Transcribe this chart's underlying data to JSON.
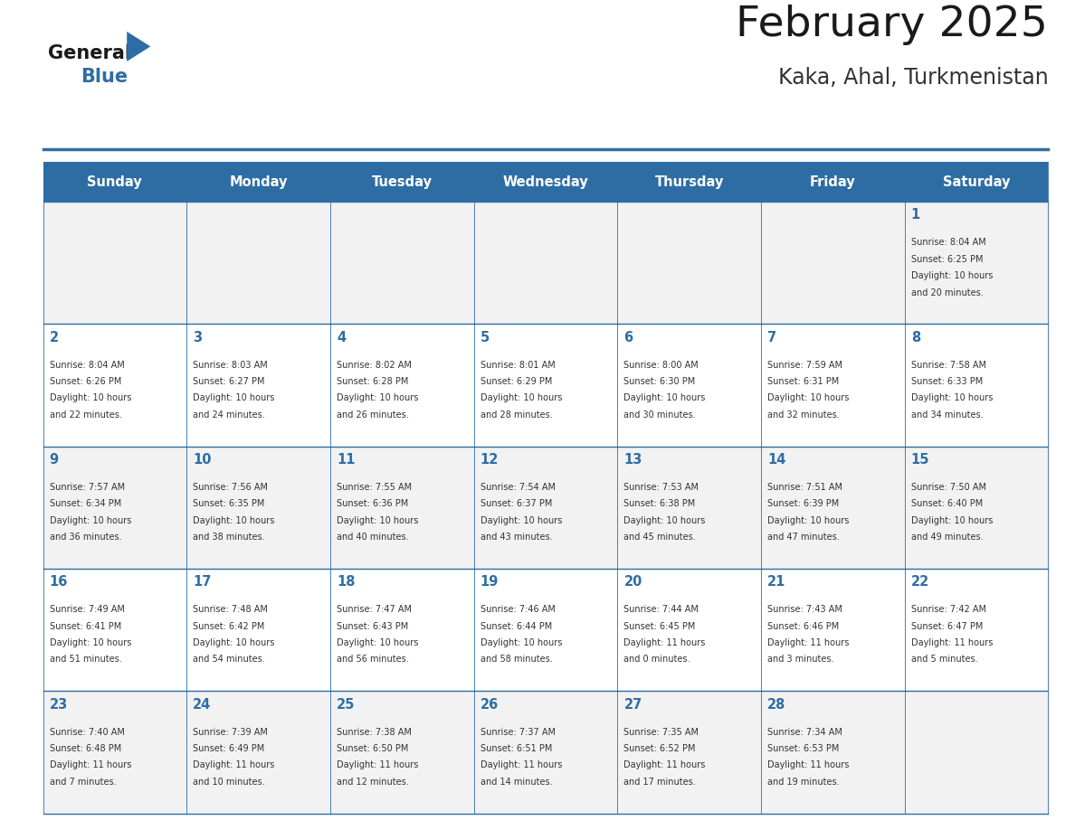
{
  "title": "February 2025",
  "subtitle": "Kaka, Ahal, Turkmenistan",
  "days_of_week": [
    "Sunday",
    "Monday",
    "Tuesday",
    "Wednesday",
    "Thursday",
    "Friday",
    "Saturday"
  ],
  "header_bg": "#2E6DA4",
  "header_text": "#FFFFFF",
  "cell_bg_odd": "#F2F2F2",
  "cell_bg_even": "#FFFFFF",
  "border_color": "#2E6DA4",
  "title_color": "#1a1a1a",
  "subtitle_color": "#333333",
  "day_num_color": "#2E6DA4",
  "cell_text_color": "#333333",
  "logo_general_color": "#1a1a1a",
  "logo_blue_color": "#2E6DA4",
  "calendar_data": [
    [
      null,
      null,
      null,
      null,
      null,
      null,
      {
        "day": 1,
        "sunrise": "8:04 AM",
        "sunset": "6:25 PM",
        "daylight": "10 hours and 20 minutes."
      }
    ],
    [
      {
        "day": 2,
        "sunrise": "8:04 AM",
        "sunset": "6:26 PM",
        "daylight": "10 hours and 22 minutes."
      },
      {
        "day": 3,
        "sunrise": "8:03 AM",
        "sunset": "6:27 PM",
        "daylight": "10 hours and 24 minutes."
      },
      {
        "day": 4,
        "sunrise": "8:02 AM",
        "sunset": "6:28 PM",
        "daylight": "10 hours and 26 minutes."
      },
      {
        "day": 5,
        "sunrise": "8:01 AM",
        "sunset": "6:29 PM",
        "daylight": "10 hours and 28 minutes."
      },
      {
        "day": 6,
        "sunrise": "8:00 AM",
        "sunset": "6:30 PM",
        "daylight": "10 hours and 30 minutes."
      },
      {
        "day": 7,
        "sunrise": "7:59 AM",
        "sunset": "6:31 PM",
        "daylight": "10 hours and 32 minutes."
      },
      {
        "day": 8,
        "sunrise": "7:58 AM",
        "sunset": "6:33 PM",
        "daylight": "10 hours and 34 minutes."
      }
    ],
    [
      {
        "day": 9,
        "sunrise": "7:57 AM",
        "sunset": "6:34 PM",
        "daylight": "10 hours and 36 minutes."
      },
      {
        "day": 10,
        "sunrise": "7:56 AM",
        "sunset": "6:35 PM",
        "daylight": "10 hours and 38 minutes."
      },
      {
        "day": 11,
        "sunrise": "7:55 AM",
        "sunset": "6:36 PM",
        "daylight": "10 hours and 40 minutes."
      },
      {
        "day": 12,
        "sunrise": "7:54 AM",
        "sunset": "6:37 PM",
        "daylight": "10 hours and 43 minutes."
      },
      {
        "day": 13,
        "sunrise": "7:53 AM",
        "sunset": "6:38 PM",
        "daylight": "10 hours and 45 minutes."
      },
      {
        "day": 14,
        "sunrise": "7:51 AM",
        "sunset": "6:39 PM",
        "daylight": "10 hours and 47 minutes."
      },
      {
        "day": 15,
        "sunrise": "7:50 AM",
        "sunset": "6:40 PM",
        "daylight": "10 hours and 49 minutes."
      }
    ],
    [
      {
        "day": 16,
        "sunrise": "7:49 AM",
        "sunset": "6:41 PM",
        "daylight": "10 hours and 51 minutes."
      },
      {
        "day": 17,
        "sunrise": "7:48 AM",
        "sunset": "6:42 PM",
        "daylight": "10 hours and 54 minutes."
      },
      {
        "day": 18,
        "sunrise": "7:47 AM",
        "sunset": "6:43 PM",
        "daylight": "10 hours and 56 minutes."
      },
      {
        "day": 19,
        "sunrise": "7:46 AM",
        "sunset": "6:44 PM",
        "daylight": "10 hours and 58 minutes."
      },
      {
        "day": 20,
        "sunrise": "7:44 AM",
        "sunset": "6:45 PM",
        "daylight": "11 hours and 0 minutes."
      },
      {
        "day": 21,
        "sunrise": "7:43 AM",
        "sunset": "6:46 PM",
        "daylight": "11 hours and 3 minutes."
      },
      {
        "day": 22,
        "sunrise": "7:42 AM",
        "sunset": "6:47 PM",
        "daylight": "11 hours and 5 minutes."
      }
    ],
    [
      {
        "day": 23,
        "sunrise": "7:40 AM",
        "sunset": "6:48 PM",
        "daylight": "11 hours and 7 minutes."
      },
      {
        "day": 24,
        "sunrise": "7:39 AM",
        "sunset": "6:49 PM",
        "daylight": "11 hours and 10 minutes."
      },
      {
        "day": 25,
        "sunrise": "7:38 AM",
        "sunset": "6:50 PM",
        "daylight": "11 hours and 12 minutes."
      },
      {
        "day": 26,
        "sunrise": "7:37 AM",
        "sunset": "6:51 PM",
        "daylight": "11 hours and 14 minutes."
      },
      {
        "day": 27,
        "sunrise": "7:35 AM",
        "sunset": "6:52 PM",
        "daylight": "11 hours and 17 minutes."
      },
      {
        "day": 28,
        "sunrise": "7:34 AM",
        "sunset": "6:53 PM",
        "daylight": "11 hours and 19 minutes."
      },
      null
    ]
  ]
}
